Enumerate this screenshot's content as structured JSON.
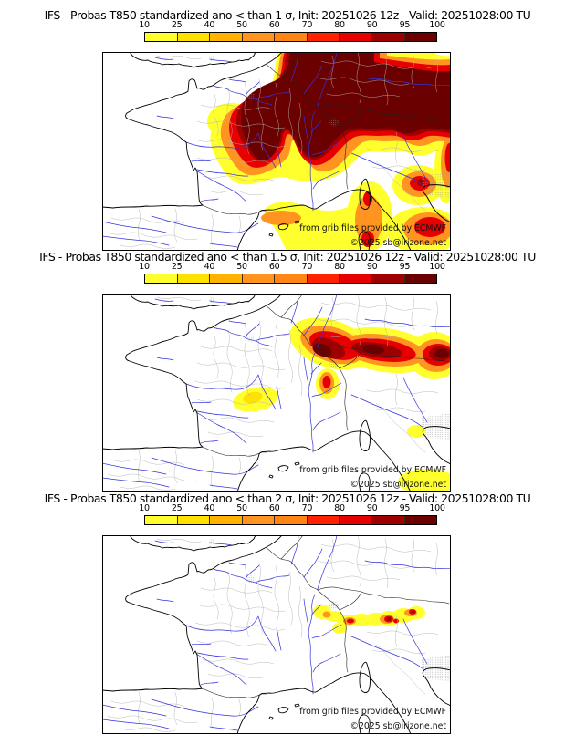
{
  "panels": [
    {
      "title": "IFS - Probas T850  standardized ano < than 1 σ, Init: 20251026 12z - Valid: 20251028:00 TU"
    },
    {
      "title": "IFS - Probas T850  standardized ano < than 1.5 σ, Init: 20251026 12z - Valid: 20251028:00 TU"
    },
    {
      "title": "IFS - Probas T850  standardized ano < than 2 σ, Init: 20251026 12z - Valid: 20251028:00 TU"
    }
  ],
  "colorbar": {
    "ticks": [
      "10",
      "25",
      "40",
      "50",
      "60",
      "70",
      "80",
      "90",
      "95",
      "100"
    ],
    "colors": [
      "#ffff2e",
      "#ffe100",
      "#ffb300",
      "#ff9520",
      "#ff8614",
      "#ff2100",
      "#e60000",
      "#9e0000",
      "#6b0000"
    ]
  },
  "map": {
    "credit_line1": "from grib files provided by ECMWF",
    "credit_line2": "©2025 sb@irizone.net",
    "river_color": "#3333dd",
    "coast_color": "#000000",
    "country_border_color": "#222222",
    "admin_border_color": "#b2b2b2"
  }
}
